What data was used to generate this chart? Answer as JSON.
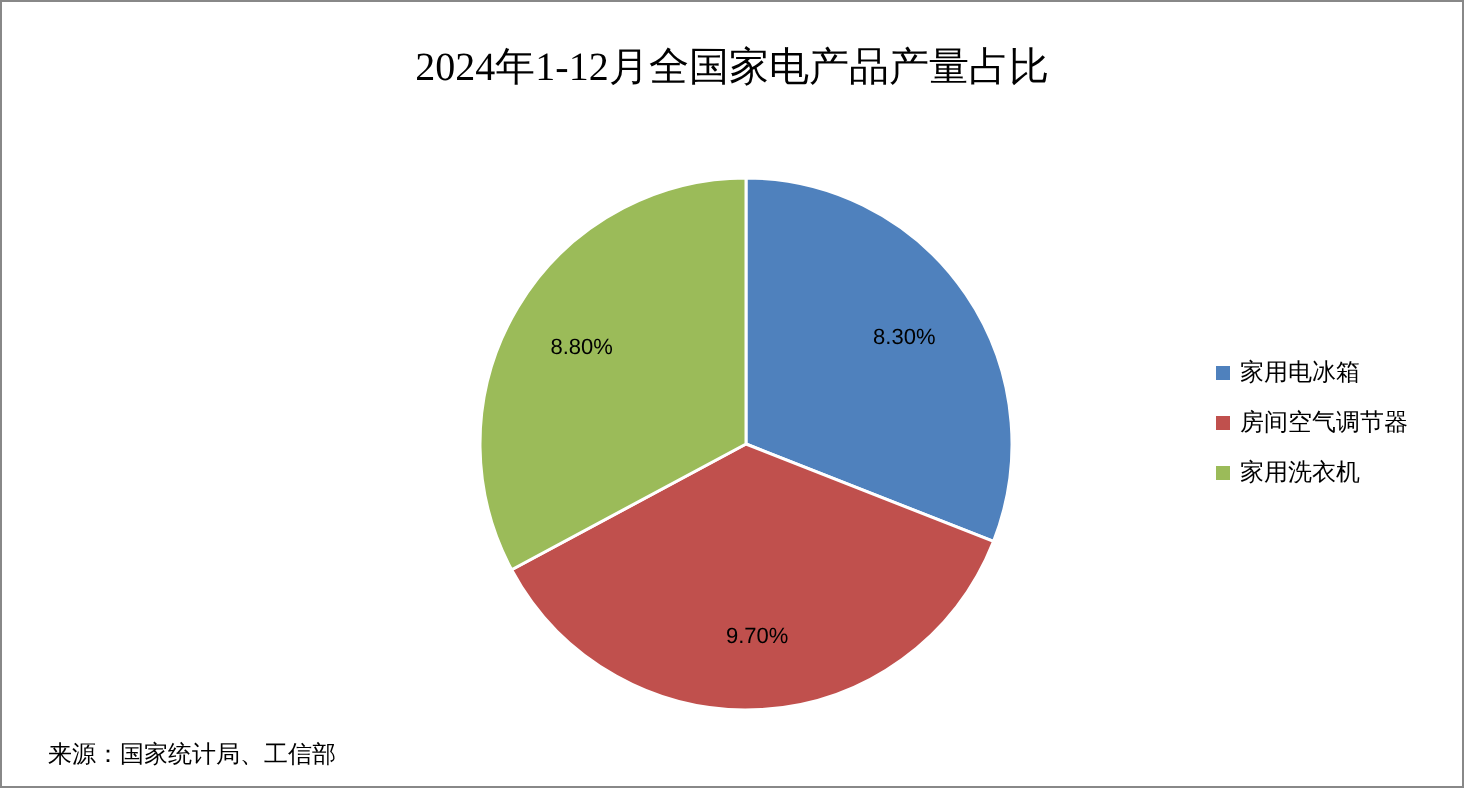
{
  "chart_data": {
    "type": "pie",
    "title": "2024年1-12月全国家电产品产量占比",
    "categories": [
      "家用电冰箱",
      "房间空气调节器",
      "家用洗衣机"
    ],
    "values": [
      8.3,
      9.7,
      8.8
    ],
    "value_labels": [
      "8.30%",
      "9.70%",
      "8.80%"
    ],
    "colors": [
      "#4f81bd",
      "#c0504d",
      "#9bbb59"
    ],
    "legend": "right",
    "annotations": [
      "来源：国家统计局、工信部"
    ]
  }
}
